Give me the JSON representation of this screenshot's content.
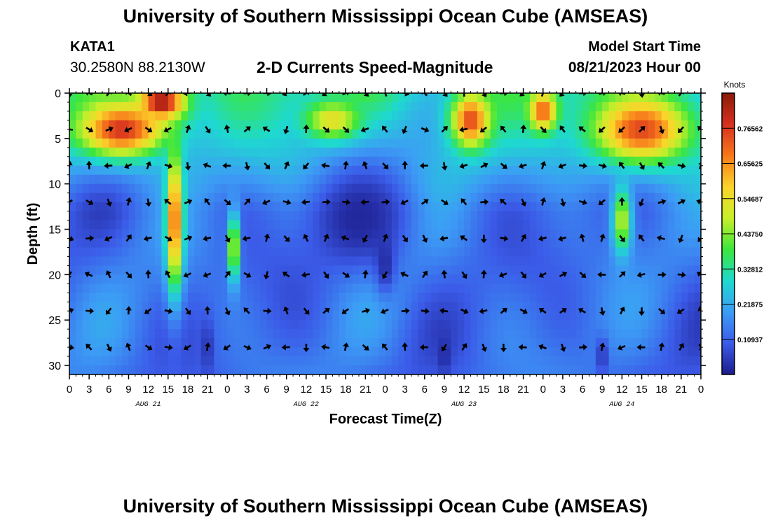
{
  "header": {
    "title": "University of Southern Mississippi Ocean Cube (AMSEAS)",
    "station": "KATA1",
    "coords": "30.2580N  88.2130W",
    "subtitle": "2-D Currents Speed-Magnitude",
    "model_start_label": "Model Start Time",
    "model_start_value": "08/21/2023 Hour 00"
  },
  "footer": {
    "title": "University of Southern Mississippi Ocean Cube (AMSEAS)"
  },
  "chart_data": {
    "type": "heatmap",
    "title": "2-D Currents Speed-Magnitude",
    "xlabel": "Forecast Time(Z)",
    "ylabel": "Depth (ft)",
    "x_tick_labels": [
      "0",
      "3",
      "6",
      "9",
      "12",
      "15",
      "18",
      "21",
      "0",
      "3",
      "6",
      "9",
      "12",
      "15",
      "18",
      "21",
      "0",
      "3",
      "6",
      "9",
      "12",
      "15",
      "18",
      "21",
      "0",
      "3",
      "6",
      "9",
      "12",
      "15",
      "18",
      "21",
      "0"
    ],
    "x_range_hours": [
      0,
      96
    ],
    "date_labels": [
      {
        "label": "AUG 21",
        "hour": 12
      },
      {
        "label": "AUG 22",
        "hour": 36
      },
      {
        "label": "AUG 23",
        "hour": 60
      },
      {
        "label": "AUG 24",
        "hour": 84
      }
    ],
    "y_ticks": [
      "0",
      "5",
      "10",
      "15",
      "20",
      "25",
      "30"
    ],
    "y_range_ft": [
      0,
      31
    ],
    "colorbar": {
      "unit": "Knots",
      "range": [
        0,
        0.875
      ],
      "tick_labels": [
        "0.76562",
        "0.65625",
        "0.54687",
        "0.43750",
        "0.32812",
        "0.21875",
        "0.10937"
      ],
      "tick_values": [
        0.765625,
        0.65625,
        0.546875,
        0.4375,
        0.328125,
        0.21875,
        0.109375
      ],
      "colors": [
        "#1c1c8c",
        "#3b5be8",
        "#3c9cf5",
        "#1ed9d0",
        "#3ce63c",
        "#c8ef2a",
        "#fbd42a",
        "#f7781a",
        "#d7301f",
        "#8a1a08"
      ]
    },
    "arrow_depths_ft": [
      0,
      4,
      8,
      12,
      16,
      20,
      24,
      28
    ],
    "hot_regions": [
      {
        "t": 14,
        "d": 1,
        "v": 0.86,
        "st": 5,
        "sd": 3
      },
      {
        "t": 8,
        "d": 4,
        "v": 0.78,
        "st": 9,
        "sd": 4
      },
      {
        "t": 16,
        "d": 14,
        "v": 0.74,
        "st": 1.6,
        "sd": 10
      },
      {
        "t": 25,
        "d": 17,
        "v": 0.6,
        "st": 1,
        "sd": 5
      },
      {
        "t": 40,
        "d": 3,
        "v": 0.55,
        "st": 6,
        "sd": 3
      },
      {
        "t": 61,
        "d": 3,
        "v": 0.75,
        "st": 4,
        "sd": 4
      },
      {
        "t": 72,
        "d": 2,
        "v": 0.72,
        "st": 3,
        "sd": 3
      },
      {
        "t": 87,
        "d": 4,
        "v": 0.75,
        "st": 10,
        "sd": 5
      },
      {
        "t": 84,
        "d": 14,
        "v": 0.5,
        "st": 2,
        "sd": 5
      }
    ],
    "cold_regions": [
      {
        "t": 44,
        "d": 14,
        "v": 0.32,
        "st": 7,
        "sd": 5
      },
      {
        "t": 48,
        "d": 19,
        "v": 0.3,
        "st": 1.5,
        "sd": 3
      },
      {
        "t": 21,
        "d": 28,
        "v": 0.3,
        "st": 0.7,
        "sd": 3
      },
      {
        "t": 57,
        "d": 29,
        "v": 0.3,
        "st": 0.8,
        "sd": 2
      },
      {
        "t": 81,
        "d": 29,
        "v": 0.3,
        "st": 0.8,
        "sd": 2
      }
    ]
  }
}
